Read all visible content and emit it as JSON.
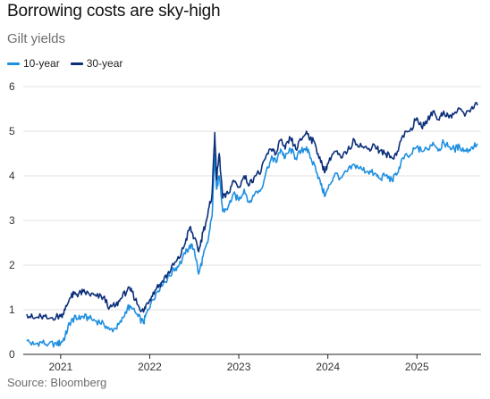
{
  "title": "Borrowing costs are sky-high",
  "subtitle": "Gilt yields",
  "source": "Source: Bloomberg",
  "chart_data": {
    "type": "line",
    "title": "Borrowing costs are sky-high",
    "subtitle": "Gilt yields",
    "xlabel": "",
    "ylabel": "",
    "xlim": [
      2020.62,
      2025.72
    ],
    "ylim": [
      0,
      6
    ],
    "y_ticks": [
      0,
      1,
      2,
      3,
      4,
      5,
      6
    ],
    "x_ticks": [
      {
        "label": "2021",
        "value": 2021.0
      },
      {
        "label": "2022",
        "value": 2022.0
      },
      {
        "label": "2023",
        "value": 2023.0
      },
      {
        "label": "2024",
        "value": 2024.0
      },
      {
        "label": "2025",
        "value": 2025.0
      }
    ],
    "grid": "horizontal",
    "legend_position": "top-left",
    "series": [
      {
        "name": "10-year",
        "color": "#1f8fe0",
        "points": [
          [
            2020.62,
            0.3
          ],
          [
            2020.7,
            0.22
          ],
          [
            2020.78,
            0.28
          ],
          [
            2020.86,
            0.22
          ],
          [
            2020.95,
            0.25
          ],
          [
            2021.0,
            0.25
          ],
          [
            2021.05,
            0.4
          ],
          [
            2021.1,
            0.7
          ],
          [
            2021.15,
            0.8
          ],
          [
            2021.2,
            0.8
          ],
          [
            2021.25,
            0.85
          ],
          [
            2021.32,
            0.8
          ],
          [
            2021.4,
            0.75
          ],
          [
            2021.48,
            0.7
          ],
          [
            2021.55,
            0.55
          ],
          [
            2021.62,
            0.58
          ],
          [
            2021.68,
            0.72
          ],
          [
            2021.75,
            1.05
          ],
          [
            2021.8,
            1.02
          ],
          [
            2021.87,
            0.85
          ],
          [
            2021.93,
            0.7
          ],
          [
            2021.97,
            0.95
          ],
          [
            2022.02,
            1.2
          ],
          [
            2022.08,
            1.4
          ],
          [
            2022.13,
            1.55
          ],
          [
            2022.2,
            1.7
          ],
          [
            2022.27,
            1.9
          ],
          [
            2022.33,
            2.0
          ],
          [
            2022.4,
            2.25
          ],
          [
            2022.45,
            2.45
          ],
          [
            2022.5,
            2.35
          ],
          [
            2022.55,
            1.8
          ],
          [
            2022.6,
            2.2
          ],
          [
            2022.65,
            2.5
          ],
          [
            2022.7,
            3.1
          ],
          [
            2022.73,
            4.5
          ],
          [
            2022.75,
            3.7
          ],
          [
            2022.78,
            4.0
          ],
          [
            2022.82,
            3.2
          ],
          [
            2022.88,
            3.3
          ],
          [
            2022.94,
            3.6
          ],
          [
            2023.0,
            3.45
          ],
          [
            2023.06,
            3.7
          ],
          [
            2023.12,
            3.4
          ],
          [
            2023.18,
            3.6
          ],
          [
            2023.25,
            3.7
          ],
          [
            2023.32,
            4.2
          ],
          [
            2023.38,
            4.4
          ],
          [
            2023.42,
            4.3
          ],
          [
            2023.47,
            4.6
          ],
          [
            2023.52,
            4.4
          ],
          [
            2023.58,
            4.6
          ],
          [
            2023.64,
            4.4
          ],
          [
            2023.7,
            4.55
          ],
          [
            2023.76,
            4.65
          ],
          [
            2023.8,
            4.4
          ],
          [
            2023.86,
            4.2
          ],
          [
            2023.92,
            3.8
          ],
          [
            2023.97,
            3.55
          ],
          [
            2024.02,
            3.8
          ],
          [
            2024.08,
            4.05
          ],
          [
            2024.15,
            3.95
          ],
          [
            2024.22,
            4.1
          ],
          [
            2024.3,
            4.25
          ],
          [
            2024.38,
            4.15
          ],
          [
            2024.45,
            4.1
          ],
          [
            2024.52,
            4.05
          ],
          [
            2024.58,
            3.95
          ],
          [
            2024.65,
            4.0
          ],
          [
            2024.72,
            3.9
          ],
          [
            2024.78,
            4.05
          ],
          [
            2024.84,
            4.4
          ],
          [
            2024.92,
            4.45
          ],
          [
            2025.0,
            4.65
          ],
          [
            2025.05,
            4.55
          ],
          [
            2025.12,
            4.6
          ],
          [
            2025.18,
            4.75
          ],
          [
            2025.25,
            4.6
          ],
          [
            2025.3,
            4.75
          ],
          [
            2025.36,
            4.65
          ],
          [
            2025.42,
            4.6
          ],
          [
            2025.48,
            4.65
          ],
          [
            2025.55,
            4.55
          ],
          [
            2025.62,
            4.65
          ],
          [
            2025.68,
            4.72
          ]
        ]
      },
      {
        "name": "30-year",
        "color": "#0d2f7a",
        "points": [
          [
            2020.62,
            0.9
          ],
          [
            2020.7,
            0.8
          ],
          [
            2020.78,
            0.85
          ],
          [
            2020.86,
            0.8
          ],
          [
            2020.95,
            0.85
          ],
          [
            2021.0,
            0.85
          ],
          [
            2021.05,
            1.0
          ],
          [
            2021.1,
            1.25
          ],
          [
            2021.15,
            1.35
          ],
          [
            2021.2,
            1.35
          ],
          [
            2021.25,
            1.4
          ],
          [
            2021.32,
            1.35
          ],
          [
            2021.4,
            1.3
          ],
          [
            2021.48,
            1.28
          ],
          [
            2021.55,
            1.05
          ],
          [
            2021.62,
            1.1
          ],
          [
            2021.68,
            1.25
          ],
          [
            2021.75,
            1.45
          ],
          [
            2021.8,
            1.4
          ],
          [
            2021.87,
            1.1
          ],
          [
            2021.93,
            0.95
          ],
          [
            2021.97,
            1.15
          ],
          [
            2022.02,
            1.3
          ],
          [
            2022.08,
            1.5
          ],
          [
            2022.13,
            1.6
          ],
          [
            2022.2,
            1.8
          ],
          [
            2022.27,
            2.0
          ],
          [
            2022.33,
            2.15
          ],
          [
            2022.4,
            2.5
          ],
          [
            2022.45,
            2.85
          ],
          [
            2022.5,
            2.6
          ],
          [
            2022.55,
            2.3
          ],
          [
            2022.6,
            2.75
          ],
          [
            2022.65,
            3.1
          ],
          [
            2022.7,
            3.6
          ],
          [
            2022.73,
            4.97
          ],
          [
            2022.75,
            3.9
          ],
          [
            2022.78,
            4.5
          ],
          [
            2022.82,
            3.5
          ],
          [
            2022.88,
            3.6
          ],
          [
            2022.94,
            3.9
          ],
          [
            2023.0,
            3.75
          ],
          [
            2023.06,
            4.0
          ],
          [
            2023.12,
            3.8
          ],
          [
            2023.18,
            4.0
          ],
          [
            2023.25,
            4.1
          ],
          [
            2023.32,
            4.5
          ],
          [
            2023.38,
            4.6
          ],
          [
            2023.42,
            4.5
          ],
          [
            2023.47,
            4.8
          ],
          [
            2023.52,
            4.6
          ],
          [
            2023.58,
            4.85
          ],
          [
            2023.64,
            4.6
          ],
          [
            2023.7,
            4.8
          ],
          [
            2023.76,
            5.0
          ],
          [
            2023.8,
            4.85
          ],
          [
            2023.86,
            4.7
          ],
          [
            2023.92,
            4.3
          ],
          [
            2023.97,
            4.1
          ],
          [
            2024.02,
            4.4
          ],
          [
            2024.08,
            4.55
          ],
          [
            2024.15,
            4.4
          ],
          [
            2024.22,
            4.55
          ],
          [
            2024.3,
            4.8
          ],
          [
            2024.38,
            4.65
          ],
          [
            2024.45,
            4.6
          ],
          [
            2024.52,
            4.7
          ],
          [
            2024.58,
            4.55
          ],
          [
            2024.65,
            4.5
          ],
          [
            2024.72,
            4.4
          ],
          [
            2024.78,
            4.55
          ],
          [
            2024.84,
            4.9
          ],
          [
            2024.92,
            5.0
          ],
          [
            2025.0,
            5.3
          ],
          [
            2025.05,
            5.1
          ],
          [
            2025.12,
            5.25
          ],
          [
            2025.18,
            5.45
          ],
          [
            2025.25,
            5.25
          ],
          [
            2025.3,
            5.45
          ],
          [
            2025.36,
            5.3
          ],
          [
            2025.42,
            5.4
          ],
          [
            2025.48,
            5.5
          ],
          [
            2025.55,
            5.4
          ],
          [
            2025.62,
            5.55
          ],
          [
            2025.68,
            5.58
          ]
        ]
      }
    ]
  }
}
